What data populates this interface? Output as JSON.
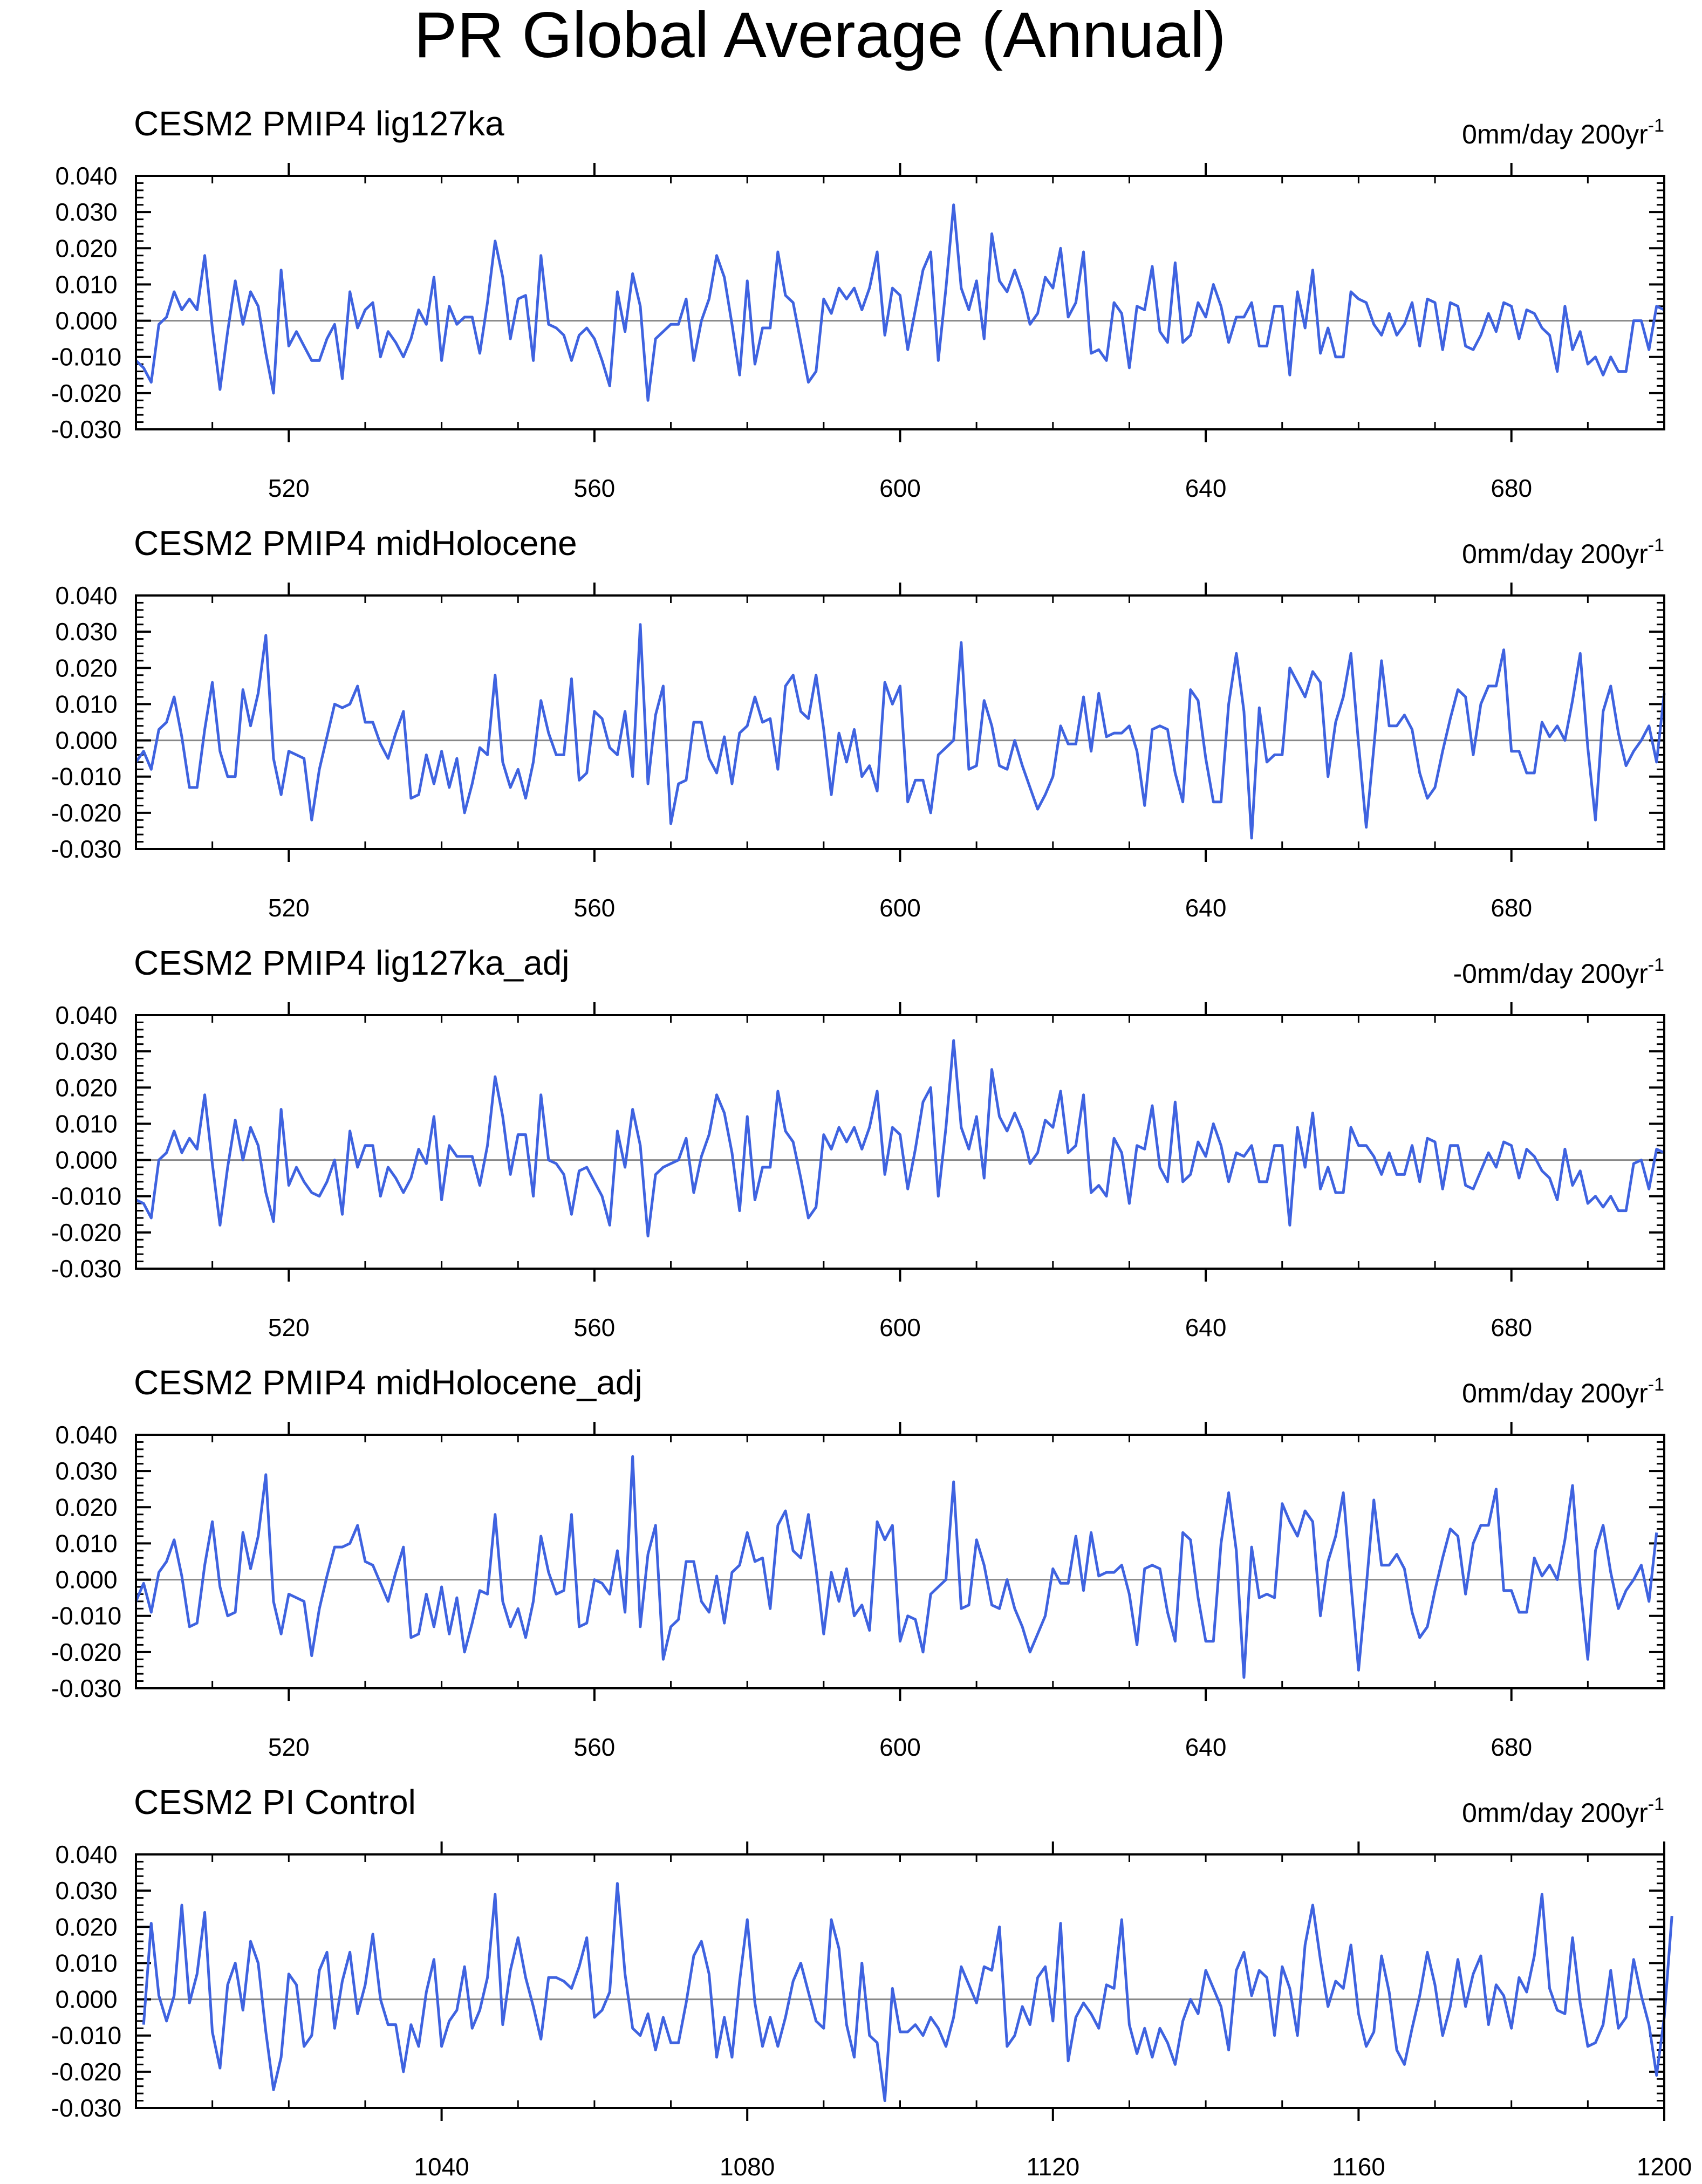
{
  "title": "PR Global Average (Annual)",
  "style": {
    "line_color": "#3F63E0"
  },
  "chart_data": [
    {
      "type": "line",
      "title": "CESM2 PMIP4 lig127ka",
      "trend_label": "0mm/day 200yr",
      "trend_superscript": "-1",
      "xlim": [
        500,
        700
      ],
      "ylim": [
        -0.03,
        0.04
      ],
      "xticks": [
        520,
        560,
        600,
        640,
        680
      ],
      "yticks": [
        -0.03,
        -0.02,
        -0.01,
        0.0,
        0.01,
        0.02,
        0.03,
        0.04
      ],
      "ytick_labels": [
        "-0.030",
        "-0.020",
        "-0.010",
        "0.000",
        "0.010",
        "0.020",
        "0.030",
        "0.040"
      ],
      "x_start": 500,
      "x_step": 1,
      "values": [
        -0.011,
        -0.013,
        -0.017,
        -0.001,
        0.001,
        0.008,
        0.003,
        0.006,
        0.003,
        0.018,
        -0.002,
        -0.019,
        -0.003,
        0.011,
        -0.001,
        0.008,
        0.004,
        -0.009,
        -0.02,
        0.014,
        -0.007,
        -0.003,
        -0.007,
        -0.011,
        -0.011,
        -0.005,
        -0.001,
        -0.016,
        0.008,
        -0.002,
        0.003,
        0.005,
        -0.01,
        -0.003,
        -0.006,
        -0.01,
        -0.005,
        0.003,
        -0.001,
        0.012,
        -0.011,
        0.004,
        -0.001,
        0.001,
        0.001,
        -0.009,
        0.005,
        0.022,
        0.012,
        -0.005,
        0.006,
        0.007,
        -0.011,
        0.018,
        -0.001,
        -0.002,
        -0.004,
        -0.011,
        -0.004,
        -0.002,
        -0.005,
        -0.011,
        -0.018,
        0.008,
        -0.003,
        0.013,
        0.004,
        -0.022,
        -0.005,
        -0.003,
        -0.001,
        -0.001,
        0.006,
        -0.011,
        0.0,
        0.006,
        0.018,
        0.012,
        -0.001,
        -0.015,
        0.011,
        -0.012,
        -0.002,
        -0.002,
        0.019,
        0.007,
        0.005,
        -0.006,
        -0.017,
        -0.014,
        0.006,
        0.002,
        0.009,
        0.006,
        0.009,
        0.003,
        0.009,
        0.019,
        -0.004,
        0.009,
        0.007,
        -0.008,
        0.003,
        0.014,
        0.019,
        -0.011,
        0.009,
        0.032,
        0.009,
        0.003,
        0.011,
        -0.005,
        0.024,
        0.011,
        0.008,
        0.014,
        0.008,
        -0.001,
        0.002,
        0.012,
        0.009,
        0.02,
        0.001,
        0.005,
        0.019,
        -0.009,
        -0.008,
        -0.011,
        0.005,
        0.002,
        -0.013,
        0.004,
        0.003,
        0.015,
        -0.003,
        -0.006,
        0.016,
        -0.006,
        -0.004,
        0.005,
        0.001,
        0.01,
        0.004,
        -0.006,
        0.001,
        0.001,
        0.005,
        -0.007,
        -0.007,
        0.004,
        0.004,
        -0.015,
        0.008,
        -0.002,
        0.014,
        -0.009,
        -0.002,
        -0.01,
        -0.01,
        0.008,
        0.006,
        0.005,
        -0.001,
        -0.004,
        0.002,
        -0.004,
        -0.001,
        0.005,
        -0.007,
        0.006,
        0.005,
        -0.008,
        0.005,
        0.004,
        -0.007,
        -0.008,
        -0.004,
        0.002,
        -0.003,
        0.005,
        0.004,
        -0.005,
        0.003,
        0.002,
        -0.002,
        -0.004,
        -0.014,
        0.004,
        -0.008,
        -0.003,
        -0.012,
        -0.01,
        -0.015,
        -0.01,
        -0.014,
        -0.014,
        0.0,
        0.0,
        -0.008,
        0.004,
        0.003
      ]
    },
    {
      "type": "line",
      "title": "CESM2 PMIP4 midHolocene",
      "trend_label": "0mm/day 200yr",
      "trend_superscript": "-1",
      "xlim": [
        500,
        700
      ],
      "ylim": [
        -0.03,
        0.04
      ],
      "xticks": [
        520,
        560,
        600,
        640,
        680
      ],
      "yticks": [
        -0.03,
        -0.02,
        -0.01,
        0.0,
        0.01,
        0.02,
        0.03,
        0.04
      ],
      "ytick_labels": [
        "-0.030",
        "-0.020",
        "-0.010",
        "0.000",
        "0.010",
        "0.020",
        "0.030",
        "0.040"
      ],
      "x_start": 500,
      "x_step": 1,
      "values": [
        -0.006,
        -0.003,
        -0.008,
        0.003,
        0.005,
        0.012,
        0.001,
        -0.013,
        -0.013,
        0.003,
        0.016,
        -0.003,
        -0.01,
        -0.01,
        0.014,
        0.004,
        0.013,
        0.029,
        -0.005,
        -0.015,
        -0.003,
        -0.004,
        -0.005,
        -0.022,
        -0.008,
        0.001,
        0.01,
        0.009,
        0.01,
        0.015,
        0.005,
        0.005,
        -0.001,
        -0.005,
        0.002,
        0.008,
        -0.016,
        -0.015,
        -0.004,
        -0.012,
        -0.003,
        -0.013,
        -0.005,
        -0.02,
        -0.012,
        -0.002,
        -0.004,
        0.018,
        -0.006,
        -0.013,
        -0.008,
        -0.016,
        -0.006,
        0.011,
        0.002,
        -0.004,
        -0.004,
        0.017,
        -0.011,
        -0.009,
        0.008,
        0.006,
        -0.002,
        -0.004,
        0.008,
        -0.01,
        0.032,
        -0.012,
        0.007,
        0.015,
        -0.023,
        -0.012,
        -0.011,
        0.005,
        0.005,
        -0.005,
        -0.009,
        0.001,
        -0.012,
        0.002,
        0.004,
        0.012,
        0.005,
        0.006,
        -0.008,
        0.015,
        0.018,
        0.008,
        0.006,
        0.018,
        0.003,
        -0.015,
        0.002,
        -0.006,
        0.003,
        -0.01,
        -0.007,
        -0.014,
        0.016,
        0.01,
        0.015,
        -0.017,
        -0.011,
        -0.011,
        -0.02,
        -0.004,
        -0.002,
        0.0,
        0.027,
        -0.008,
        -0.007,
        0.011,
        0.004,
        -0.007,
        -0.008,
        0.0,
        -0.007,
        -0.013,
        -0.019,
        -0.015,
        -0.01,
        0.004,
        -0.001,
        -0.001,
        0.012,
        -0.003,
        0.013,
        0.001,
        0.002,
        0.002,
        0.004,
        -0.003,
        -0.018,
        0.003,
        0.004,
        0.003,
        -0.009,
        -0.017,
        0.014,
        0.011,
        -0.005,
        -0.017,
        -0.017,
        0.01,
        0.024,
        0.008,
        -0.027,
        0.009,
        -0.006,
        -0.004,
        -0.004,
        0.02,
        0.016,
        0.012,
        0.019,
        0.016,
        -0.01,
        0.005,
        0.012,
        0.024,
        -0.001,
        -0.024,
        -0.002,
        0.022,
        0.004,
        0.004,
        0.007,
        0.003,
        -0.009,
        -0.016,
        -0.013,
        -0.003,
        0.006,
        0.014,
        0.012,
        -0.004,
        0.01,
        0.015,
        0.015,
        0.025,
        -0.003,
        -0.003,
        -0.009,
        -0.009,
        0.005,
        0.001,
        0.004,
        0.0,
        0.011,
        0.024,
        -0.002,
        -0.022,
        0.008,
        0.015,
        0.002,
        -0.007,
        -0.003,
        0.0,
        0.004,
        -0.006,
        0.013
      ]
    },
    {
      "type": "line",
      "title": "CESM2 PMIP4 lig127ka_adj",
      "trend_label": "-0mm/day 200yr",
      "trend_superscript": "-1",
      "xlim": [
        500,
        700
      ],
      "ylim": [
        -0.03,
        0.04
      ],
      "xticks": [
        520,
        560,
        600,
        640,
        680
      ],
      "yticks": [
        -0.03,
        -0.02,
        -0.01,
        0.0,
        0.01,
        0.02,
        0.03,
        0.04
      ],
      "ytick_labels": [
        "-0.030",
        "-0.020",
        "-0.010",
        "0.000",
        "0.010",
        "0.020",
        "0.030",
        "0.040"
      ],
      "x_start": 500,
      "x_step": 1,
      "values": [
        -0.011,
        -0.012,
        -0.016,
        0.0,
        0.002,
        0.008,
        0.002,
        0.006,
        0.003,
        0.018,
        -0.001,
        -0.018,
        -0.002,
        0.011,
        0.0,
        0.009,
        0.004,
        -0.009,
        -0.017,
        0.014,
        -0.007,
        -0.002,
        -0.006,
        -0.009,
        -0.01,
        -0.006,
        0.0,
        -0.015,
        0.008,
        -0.002,
        0.004,
        0.004,
        -0.01,
        -0.002,
        -0.005,
        -0.009,
        -0.005,
        0.003,
        -0.001,
        0.012,
        -0.011,
        0.004,
        0.001,
        0.001,
        0.001,
        -0.007,
        0.004,
        0.023,
        0.012,
        -0.004,
        0.007,
        0.007,
        -0.01,
        0.018,
        0.0,
        -0.001,
        -0.004,
        -0.015,
        -0.003,
        -0.002,
        -0.006,
        -0.01,
        -0.018,
        0.008,
        -0.002,
        0.014,
        0.004,
        -0.021,
        -0.004,
        -0.002,
        -0.001,
        0.0,
        0.006,
        -0.009,
        0.001,
        0.007,
        0.018,
        0.013,
        0.002,
        -0.014,
        0.012,
        -0.011,
        -0.002,
        -0.002,
        0.019,
        0.008,
        0.005,
        -0.005,
        -0.016,
        -0.013,
        0.007,
        0.003,
        0.009,
        0.005,
        0.009,
        0.003,
        0.009,
        0.019,
        -0.004,
        0.009,
        0.007,
        -0.008,
        0.003,
        0.016,
        0.02,
        -0.01,
        0.009,
        0.033,
        0.009,
        0.003,
        0.012,
        -0.005,
        0.025,
        0.012,
        0.008,
        0.013,
        0.008,
        -0.001,
        0.002,
        0.011,
        0.009,
        0.019,
        0.002,
        0.004,
        0.018,
        -0.009,
        -0.007,
        -0.01,
        0.006,
        0.002,
        -0.012,
        0.004,
        0.003,
        0.015,
        -0.002,
        -0.006,
        0.016,
        -0.006,
        -0.004,
        0.005,
        0.001,
        0.01,
        0.004,
        -0.006,
        0.002,
        0.001,
        0.004,
        -0.006,
        -0.006,
        0.004,
        0.004,
        -0.018,
        0.009,
        -0.002,
        0.013,
        -0.008,
        -0.002,
        -0.009,
        -0.009,
        0.009,
        0.004,
        0.004,
        0.001,
        -0.004,
        0.002,
        -0.004,
        -0.004,
        0.004,
        -0.006,
        0.006,
        0.005,
        -0.008,
        0.004,
        0.004,
        -0.007,
        -0.008,
        -0.003,
        0.002,
        -0.002,
        0.005,
        0.004,
        -0.005,
        0.003,
        0.001,
        -0.003,
        -0.005,
        -0.011,
        0.003,
        -0.007,
        -0.003,
        -0.012,
        -0.01,
        -0.013,
        -0.01,
        -0.014,
        -0.014,
        -0.001,
        0.0,
        -0.008,
        0.003,
        0.002
      ]
    },
    {
      "type": "line",
      "title": "CESM2 PMIP4 midHolocene_adj",
      "trend_label": "0mm/day 200yr",
      "trend_superscript": "-1",
      "xlim": [
        500,
        700
      ],
      "ylim": [
        -0.03,
        0.04
      ],
      "xticks": [
        520,
        560,
        600,
        640,
        680
      ],
      "yticks": [
        -0.03,
        -0.02,
        -0.01,
        0.0,
        0.01,
        0.02,
        0.03,
        0.04
      ],
      "ytick_labels": [
        "-0.030",
        "-0.020",
        "-0.010",
        "0.000",
        "0.010",
        "0.020",
        "0.030",
        "0.040"
      ],
      "x_start": 500,
      "x_step": 1,
      "values": [
        -0.006,
        -0.001,
        -0.009,
        0.002,
        0.005,
        0.011,
        0.001,
        -0.013,
        -0.012,
        0.004,
        0.016,
        -0.002,
        -0.01,
        -0.009,
        0.013,
        0.003,
        0.012,
        0.029,
        -0.006,
        -0.015,
        -0.004,
        -0.005,
        -0.006,
        -0.021,
        -0.008,
        0.001,
        0.009,
        0.009,
        0.01,
        0.015,
        0.005,
        0.004,
        -0.001,
        -0.006,
        0.002,
        0.009,
        -0.016,
        -0.015,
        -0.004,
        -0.013,
        -0.002,
        -0.015,
        -0.005,
        -0.02,
        -0.012,
        -0.003,
        -0.004,
        0.018,
        -0.006,
        -0.013,
        -0.008,
        -0.016,
        -0.006,
        0.012,
        0.002,
        -0.004,
        -0.003,
        0.018,
        -0.013,
        -0.012,
        0.0,
        -0.001,
        -0.004,
        0.008,
        -0.009,
        0.034,
        -0.013,
        0.007,
        0.015,
        -0.022,
        -0.013,
        -0.011,
        0.005,
        0.005,
        -0.006,
        -0.009,
        0.001,
        -0.012,
        0.002,
        0.004,
        0.013,
        0.005,
        0.006,
        -0.008,
        0.015,
        0.019,
        0.008,
        0.006,
        0.018,
        0.003,
        -0.015,
        0.002,
        -0.006,
        0.003,
        -0.01,
        -0.007,
        -0.014,
        0.016,
        0.011,
        0.015,
        -0.017,
        -0.01,
        -0.011,
        -0.02,
        -0.004,
        -0.002,
        0.0,
        0.027,
        -0.008,
        -0.007,
        0.011,
        0.004,
        -0.007,
        -0.008,
        0.0,
        -0.008,
        -0.013,
        -0.02,
        -0.015,
        -0.01,
        0.003,
        -0.001,
        -0.001,
        0.012,
        -0.003,
        0.013,
        0.001,
        0.002,
        0.002,
        0.004,
        -0.004,
        -0.018,
        0.003,
        0.004,
        0.003,
        -0.009,
        -0.017,
        0.013,
        0.011,
        -0.005,
        -0.017,
        -0.017,
        0.01,
        0.024,
        0.008,
        -0.027,
        0.009,
        -0.005,
        -0.004,
        -0.005,
        0.021,
        0.016,
        0.012,
        0.019,
        0.016,
        -0.01,
        0.005,
        0.012,
        0.024,
        -0.001,
        -0.025,
        -0.002,
        0.022,
        0.004,
        0.004,
        0.007,
        0.003,
        -0.009,
        -0.016,
        -0.013,
        -0.003,
        0.006,
        0.014,
        0.012,
        -0.004,
        0.01,
        0.015,
        0.015,
        0.025,
        -0.003,
        -0.003,
        -0.009,
        -0.009,
        0.006,
        0.001,
        0.004,
        0.0,
        0.011,
        0.026,
        -0.002,
        -0.022,
        0.008,
        0.015,
        0.002,
        -0.008,
        -0.003,
        0.0,
        0.004,
        -0.006,
        0.013
      ]
    },
    {
      "type": "line",
      "title": "CESM2 PI Control",
      "trend_label": "0mm/day 200yr",
      "trend_superscript": "-1",
      "xlim": [
        1000,
        1200
      ],
      "ylim": [
        -0.03,
        0.04
      ],
      "xticks": [
        1040,
        1080,
        1120,
        1160,
        1200
      ],
      "yticks": [
        -0.03,
        -0.02,
        -0.01,
        0.0,
        0.01,
        0.02,
        0.03,
        0.04
      ],
      "ytick_labels": [
        "-0.030",
        "-0.020",
        "-0.010",
        "0.000",
        "0.010",
        "0.020",
        "0.030",
        "0.040"
      ],
      "x_start": 1001,
      "x_step": 1,
      "values": [
        -0.007,
        0.021,
        0.001,
        -0.006,
        0.001,
        0.026,
        -0.001,
        0.007,
        0.024,
        -0.009,
        -0.019,
        0.004,
        0.01,
        -0.003,
        0.016,
        0.01,
        -0.009,
        -0.025,
        -0.016,
        0.007,
        0.004,
        -0.013,
        -0.01,
        0.008,
        0.013,
        -0.008,
        0.005,
        0.013,
        -0.004,
        0.004,
        0.018,
        0.0,
        -0.007,
        -0.007,
        -0.02,
        -0.007,
        -0.013,
        0.002,
        0.011,
        -0.013,
        -0.006,
        -0.003,
        0.009,
        -0.008,
        -0.003,
        0.006,
        0.029,
        -0.007,
        0.008,
        0.017,
        0.006,
        -0.002,
        -0.011,
        0.006,
        0.006,
        0.005,
        0.003,
        0.009,
        0.017,
        -0.005,
        -0.003,
        0.002,
        0.032,
        0.007,
        -0.008,
        -0.01,
        -0.004,
        -0.014,
        -0.005,
        -0.012,
        -0.012,
        -0.001,
        0.012,
        0.016,
        0.007,
        -0.016,
        -0.005,
        -0.016,
        0.005,
        0.022,
        -0.001,
        -0.013,
        -0.005,
        -0.013,
        -0.005,
        0.005,
        0.01,
        0.002,
        -0.006,
        -0.008,
        0.022,
        0.014,
        -0.007,
        -0.016,
        0.01,
        -0.01,
        -0.012,
        -0.028,
        0.003,
        -0.009,
        -0.009,
        -0.007,
        -0.01,
        -0.005,
        -0.008,
        -0.013,
        -0.005,
        0.009,
        0.004,
        -0.001,
        0.009,
        0.008,
        0.02,
        -0.013,
        -0.01,
        -0.002,
        -0.007,
        0.006,
        0.009,
        -0.006,
        0.021,
        -0.017,
        -0.005,
        -0.001,
        -0.004,
        -0.008,
        0.004,
        0.003,
        0.022,
        -0.007,
        -0.015,
        -0.008,
        -0.016,
        -0.008,
        -0.012,
        -0.018,
        -0.006,
        0.0,
        -0.004,
        0.008,
        0.003,
        -0.002,
        -0.014,
        0.008,
        0.013,
        0.001,
        0.008,
        0.006,
        -0.01,
        0.009,
        0.003,
        -0.01,
        0.015,
        0.026,
        0.011,
        -0.002,
        0.005,
        0.003,
        0.015,
        -0.004,
        -0.013,
        -0.009,
        0.012,
        0.002,
        -0.014,
        -0.018,
        -0.008,
        0.001,
        0.013,
        0.004,
        -0.01,
        -0.002,
        0.011,
        -0.002,
        0.007,
        0.012,
        -0.007,
        0.004,
        0.001,
        -0.008,
        0.006,
        0.002,
        0.012,
        0.029,
        0.003,
        -0.003,
        -0.004,
        0.017,
        -0.001,
        -0.013,
        -0.012,
        -0.007,
        0.008,
        -0.008,
        -0.005,
        0.011,
        0.001,
        -0.007,
        -0.021,
        -0.005,
        0.023
      ]
    }
  ]
}
